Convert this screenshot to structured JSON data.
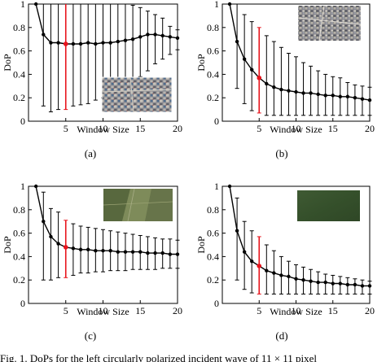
{
  "chart_data": [
    {
      "type": "line",
      "panel": "(a)",
      "xlabel": "Window Size",
      "ylabel": "DoP",
      "xlim": [
        0,
        20
      ],
      "ylim": [
        0,
        1
      ],
      "xticks": [
        "5",
        "10",
        "15",
        "20"
      ],
      "yticks": [
        "0",
        "0.2",
        "0.4",
        "0.6",
        "0.8",
        "1"
      ],
      "highlight_x": 5,
      "highlight_color": "#e8141c",
      "inset_image": "urban aerial image",
      "x": [
        1,
        2,
        3,
        4,
        5,
        6,
        7,
        8,
        9,
        10,
        11,
        12,
        13,
        14,
        15,
        16,
        17,
        18,
        19,
        20
      ],
      "values": [
        1.0,
        0.74,
        0.67,
        0.67,
        0.66,
        0.66,
        0.66,
        0.67,
        0.66,
        0.67,
        0.67,
        0.68,
        0.69,
        0.7,
        0.72,
        0.74,
        0.74,
        0.73,
        0.72,
        0.71
      ],
      "err_upper": [
        1.0,
        1.0,
        1.0,
        1.0,
        1.0,
        1.0,
        1.0,
        1.0,
        1.0,
        1.0,
        1.0,
        1.0,
        1.0,
        0.99,
        0.97,
        0.94,
        0.91,
        0.88,
        0.81,
        0.78
      ],
      "err_lower": [
        1.0,
        0.13,
        0.08,
        0.1,
        0.1,
        0.13,
        0.14,
        0.15,
        0.18,
        0.2,
        0.22,
        0.25,
        0.28,
        0.32,
        0.38,
        0.43,
        0.49,
        0.53,
        0.57,
        0.61
      ]
    },
    {
      "type": "line",
      "panel": "(b)",
      "xlabel": "Window Size",
      "ylabel": "DoP",
      "xlim": [
        0,
        20
      ],
      "ylim": [
        0,
        1
      ],
      "xticks": [
        "5",
        "10",
        "15",
        "20"
      ],
      "yticks": [
        "0",
        "0.2",
        "0.4",
        "0.6",
        "0.8",
        "1"
      ],
      "highlight_x": 5,
      "highlight_color": "#e8141c",
      "inset_image": "dense urban aerial image",
      "x": [
        1,
        2,
        3,
        4,
        5,
        6,
        7,
        8,
        9,
        10,
        11,
        12,
        13,
        14,
        15,
        16,
        17,
        18,
        19,
        20
      ],
      "values": [
        1.0,
        0.68,
        0.53,
        0.44,
        0.37,
        0.32,
        0.29,
        0.27,
        0.26,
        0.25,
        0.24,
        0.24,
        0.23,
        0.22,
        0.22,
        0.21,
        0.21,
        0.2,
        0.19,
        0.18
      ],
      "err_upper": [
        1.0,
        1.0,
        0.91,
        0.85,
        0.8,
        0.73,
        0.68,
        0.63,
        0.58,
        0.55,
        0.5,
        0.47,
        0.43,
        0.4,
        0.38,
        0.37,
        0.33,
        0.31,
        0.3,
        0.29
      ],
      "err_lower": [
        1.0,
        0.28,
        0.15,
        0.09,
        0.07,
        0.05,
        0.05,
        0.05,
        0.05,
        0.05,
        0.05,
        0.05,
        0.05,
        0.05,
        0.05,
        0.05,
        0.05,
        0.05,
        0.05,
        0.05
      ]
    },
    {
      "type": "line",
      "panel": "(c)",
      "xlabel": "Window Size",
      "ylabel": "DoP",
      "xlim": [
        0,
        20
      ],
      "ylim": [
        0,
        1
      ],
      "xticks": [
        "5",
        "10",
        "15",
        "20"
      ],
      "yticks": [
        "0",
        "0.2",
        "0.4",
        "0.6",
        "0.8",
        "1"
      ],
      "highlight_x": 5,
      "highlight_color": "#e8141c",
      "inset_image": "agricultural fields aerial image",
      "x": [
        1,
        2,
        3,
        4,
        5,
        6,
        7,
        8,
        9,
        10,
        11,
        12,
        13,
        14,
        15,
        16,
        17,
        18,
        19,
        20
      ],
      "values": [
        1.0,
        0.7,
        0.57,
        0.51,
        0.48,
        0.47,
        0.46,
        0.46,
        0.45,
        0.45,
        0.45,
        0.44,
        0.44,
        0.44,
        0.44,
        0.43,
        0.43,
        0.43,
        0.42,
        0.42
      ],
      "err_upper": [
        1.0,
        0.95,
        0.81,
        0.78,
        0.71,
        0.68,
        0.66,
        0.65,
        0.64,
        0.63,
        0.62,
        0.61,
        0.6,
        0.59,
        0.58,
        0.57,
        0.56,
        0.55,
        0.55,
        0.54
      ],
      "err_lower": [
        1.0,
        0.2,
        0.2,
        0.22,
        0.22,
        0.24,
        0.26,
        0.26,
        0.27,
        0.27,
        0.28,
        0.28,
        0.28,
        0.29,
        0.29,
        0.29,
        0.29,
        0.3,
        0.3,
        0.3
      ]
    },
    {
      "type": "line",
      "panel": "(d)",
      "xlabel": "Window Size",
      "ylabel": "DoP",
      "xlim": [
        0,
        20
      ],
      "ylim": [
        0,
        1
      ],
      "xticks": [
        "5",
        "10",
        "15",
        "20"
      ],
      "yticks": [
        "0",
        "0.2",
        "0.4",
        "0.6",
        "0.8",
        "1"
      ],
      "highlight_x": 5,
      "highlight_color": "#e8141c",
      "inset_image": "forest aerial image",
      "x": [
        1,
        2,
        3,
        4,
        5,
        6,
        7,
        8,
        9,
        10,
        11,
        12,
        13,
        14,
        15,
        16,
        17,
        18,
        19,
        20
      ],
      "values": [
        1.0,
        0.62,
        0.44,
        0.36,
        0.32,
        0.28,
        0.26,
        0.24,
        0.23,
        0.21,
        0.2,
        0.19,
        0.18,
        0.18,
        0.17,
        0.17,
        0.16,
        0.16,
        0.15,
        0.15
      ],
      "err_upper": [
        1.0,
        0.9,
        0.7,
        0.62,
        0.57,
        0.5,
        0.45,
        0.4,
        0.36,
        0.33,
        0.31,
        0.29,
        0.27,
        0.25,
        0.24,
        0.23,
        0.22,
        0.21,
        0.2,
        0.19
      ],
      "err_lower": [
        1.0,
        0.2,
        0.12,
        0.09,
        0.08,
        0.08,
        0.08,
        0.08,
        0.08,
        0.08,
        0.08,
        0.08,
        0.08,
        0.08,
        0.08,
        0.08,
        0.08,
        0.08,
        0.08,
        0.08
      ]
    }
  ],
  "caption": {
    "text": "Fig. 1.   DoPs for the left circularly polarized incident wave of 11 × 11 pixel"
  }
}
